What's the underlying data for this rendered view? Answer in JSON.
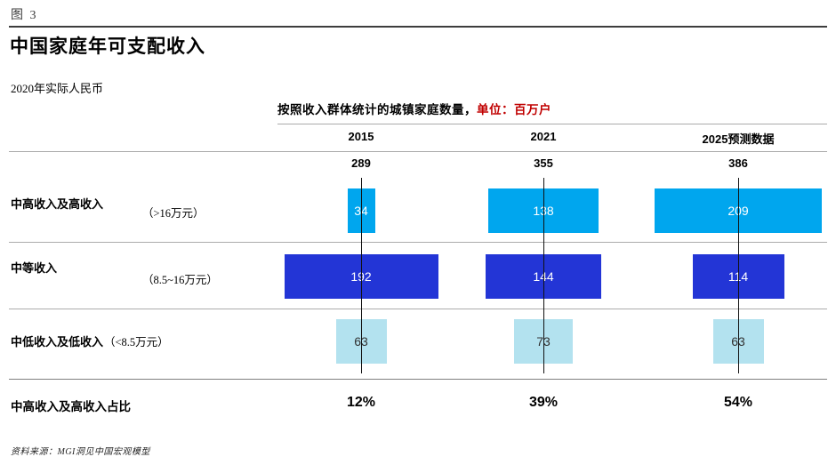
{
  "figure": {
    "label": "图 3",
    "title": "中国家庭年可支配收入",
    "subtitle": "2020年实际人民币",
    "source": "资料来源：MGI洞见中国宏观模型"
  },
  "colors": {
    "accent_red": "#c00000",
    "bar_cyan": "#00a6ee",
    "bar_dark_blue": "#2335d6",
    "bar_pale_blue": "#b3e2ef",
    "axis_line": "#111111",
    "divider_gray": "#ababab"
  },
  "chart_data": {
    "type": "bar",
    "orientation": "horizontal-centered",
    "title": "按照收入群体统计的城镇家庭数量，",
    "unit_label": "单位：百万户",
    "share_row_label": "中高收入及高收入占比",
    "columns": [
      {
        "year": "2015",
        "total": 289,
        "values": [
          34,
          192,
          63
        ],
        "share": "12%"
      },
      {
        "year": "2021",
        "total": 355,
        "values": [
          138,
          144,
          73
        ],
        "share": "39%"
      },
      {
        "year": "2025预测数据",
        "total": 386,
        "values": [
          209,
          114,
          63
        ],
        "share": "54%"
      }
    ],
    "rows": [
      {
        "label": "中高收入及高收入",
        "range": "（>16万元）",
        "color": "#00a6ee",
        "text_color": "#ffffff"
      },
      {
        "label": "中等收入",
        "range": "（8.5~16万元）",
        "color": "#2335d6",
        "text_color": "#ffffff"
      },
      {
        "label": "中低收入及低收入",
        "range": "（<8.5万元）",
        "color": "#b3e2ef",
        "text_color": "#333333"
      }
    ]
  }
}
